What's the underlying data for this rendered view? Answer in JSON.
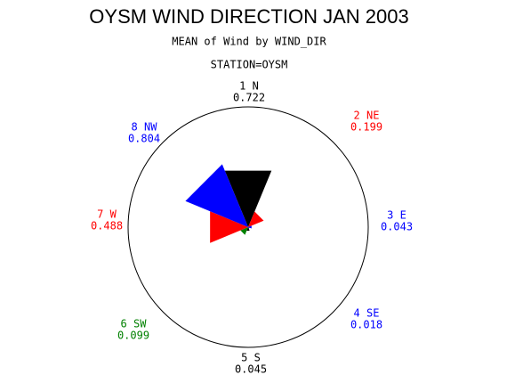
{
  "chart_data": {
    "type": "star",
    "title": "OYSM WIND DIRECTION JAN 2003",
    "subtitle": "MEAN of Wind by WIND_DIR",
    "group_label": "STATION=OYSM",
    "categories": [
      "1 N",
      "2 NE",
      "3 E",
      "4 SE",
      "5 S",
      "6 SW",
      "7 W",
      "8 NW"
    ],
    "values": [
      0.722,
      0.199,
      0.043,
      0.018,
      0.045,
      0.099,
      0.488,
      0.804
    ],
    "colors": [
      "#000000",
      "#ff0000",
      "#0000ff",
      "#0000ff",
      "#000000",
      "#008000",
      "#ff0000",
      "#0000ff"
    ]
  }
}
